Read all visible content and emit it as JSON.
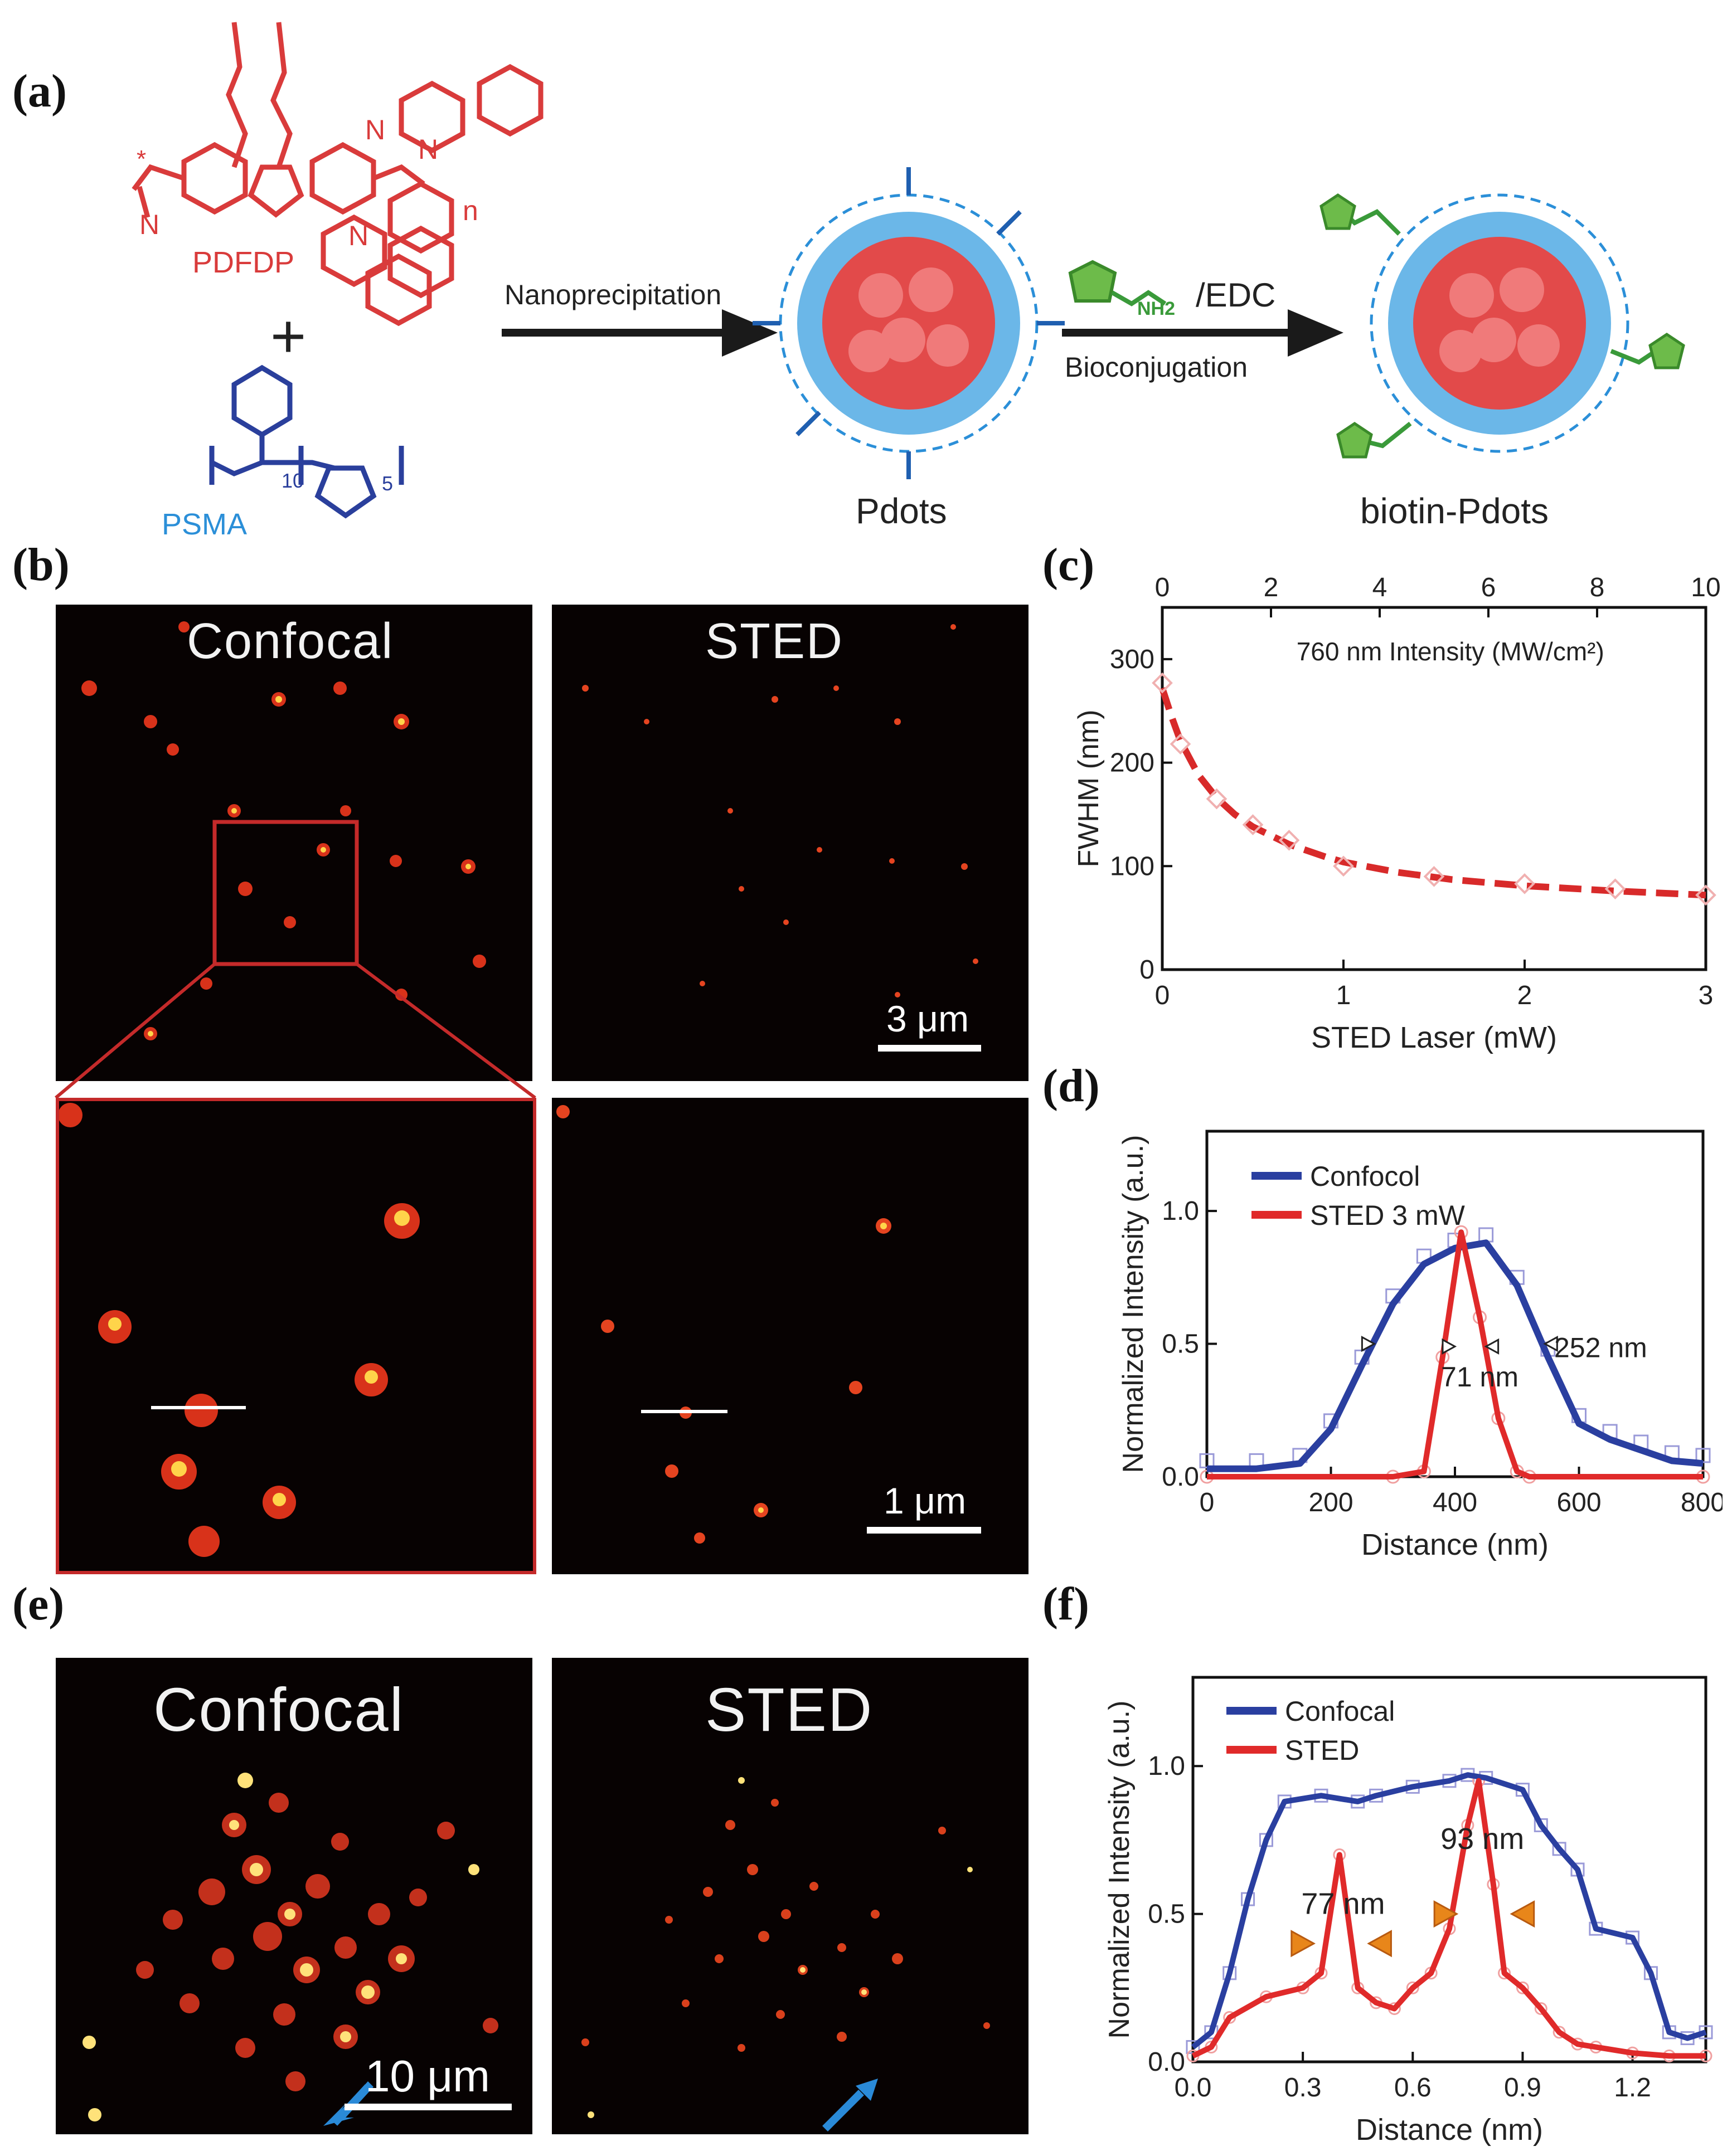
{
  "figure": {
    "panel_labels": {
      "a": "(a)",
      "b": "(b)",
      "c": "(c)",
      "d": "(d)",
      "e": "(e)",
      "f": "(f)"
    },
    "colors": {
      "pdfdp": "#d93b3b",
      "psma": "#2a3f9c",
      "psma_label": "#2b8fd8",
      "biotin": "#3a9a3a",
      "arrow": "#1a1a1a"
    }
  },
  "panel_a": {
    "pdfdp_label": "PDFDP",
    "psma_label": "PSMA",
    "plus": "+",
    "step1_label": "Nanoprecipitation",
    "reagent_label": "/EDC",
    "nh2_label": "NH2",
    "step2_label": "Bioconjugation",
    "product1": "Pdots",
    "product2": "biotin-Pdots",
    "chem_subscripts": {
      "n": "n",
      "s10": "10",
      "s5": "5"
    }
  },
  "panel_b": {
    "confocal_title": "Confocal",
    "sted_title": "STED",
    "scalebar_top": "3 μm",
    "scalebar_bottom": "1 μm"
  },
  "panel_e": {
    "confocal_title": "Confocal",
    "sted_title": "STED",
    "scalebar": "10 μm"
  },
  "chart_data": [
    {
      "id": "c",
      "type": "line",
      "xlabel": "STED Laser (mW)",
      "ylabel": "FWHM (nm)",
      "top_axis_label": "760 nm Intensity (MW/cm²)",
      "xlim": [
        0,
        3
      ],
      "ylim": [
        0,
        350
      ],
      "top_xlim": [
        0,
        10
      ],
      "xticks": [
        0,
        1,
        2,
        3
      ],
      "yticks": [
        0,
        100,
        200,
        300
      ],
      "top_ticks": [
        0,
        2,
        4,
        6,
        8,
        10
      ],
      "series": [
        {
          "name": "measured",
          "marker": "diamond",
          "x": [
            0,
            0.1,
            0.3,
            0.5,
            0.7,
            1.0,
            1.5,
            2.0,
            2.5,
            3.0
          ],
          "y": [
            277,
            218,
            165,
            140,
            125,
            100,
            90,
            83,
            78,
            72
          ]
        },
        {
          "name": "fit",
          "style": "dashed",
          "x": [
            0,
            0.05,
            0.1,
            0.2,
            0.3,
            0.4,
            0.5,
            0.7,
            0.9,
            1.0,
            1.3,
            1.6,
            2.0,
            2.5,
            3.0
          ],
          "y": [
            272,
            245,
            221,
            188,
            166,
            150,
            138,
            121,
            109,
            104,
            94,
            87,
            81,
            76,
            72
          ]
        }
      ]
    },
    {
      "id": "d",
      "type": "line",
      "xlabel": "Distance (nm)",
      "ylabel": "Normalized Intensity (a.u.)",
      "xlim": [
        0,
        800
      ],
      "ylim": [
        0,
        1.3
      ],
      "xticks": [
        0,
        200,
        400,
        600,
        800
      ],
      "yticks": [
        0.0,
        0.5,
        1.0
      ],
      "legend": [
        "Confocol",
        "STED 3 mW"
      ],
      "annotations": [
        "71 nm",
        "252 nm"
      ],
      "series": [
        {
          "name": "Confocol",
          "x": [
            0,
            80,
            150,
            200,
            250,
            300,
            350,
            400,
            450,
            500,
            550,
            600,
            650,
            700,
            750,
            800
          ],
          "y": [
            0.03,
            0.03,
            0.05,
            0.18,
            0.42,
            0.65,
            0.8,
            0.86,
            0.88,
            0.72,
            0.45,
            0.2,
            0.14,
            0.1,
            0.06,
            0.05
          ]
        },
        {
          "name": "STED 3 mW",
          "x": [
            0,
            300,
            350,
            380,
            410,
            440,
            470,
            500,
            520,
            800
          ],
          "y": [
            0,
            0,
            0.02,
            0.45,
            0.92,
            0.6,
            0.22,
            0.02,
            0,
            0
          ]
        }
      ]
    },
    {
      "id": "f",
      "type": "line",
      "xlabel": "Distance (nm)",
      "ylabel": "Normalized Intensity (a.u.)",
      "xlim": [
        0,
        1.4
      ],
      "ylim": [
        0,
        1.3
      ],
      "xticks": [
        0.0,
        0.3,
        0.6,
        0.9,
        1.2
      ],
      "yticks": [
        0.0,
        0.5,
        1.0
      ],
      "legend": [
        "Confocal",
        "STED"
      ],
      "annotations": [
        "77 nm",
        "93 nm"
      ],
      "series": [
        {
          "name": "Confocal",
          "x": [
            0,
            0.05,
            0.1,
            0.15,
            0.2,
            0.25,
            0.35,
            0.45,
            0.5,
            0.6,
            0.7,
            0.75,
            0.8,
            0.9,
            0.95,
            1.0,
            1.05,
            1.1,
            1.2,
            1.25,
            1.3,
            1.35,
            1.4
          ],
          "y": [
            0.05,
            0.1,
            0.3,
            0.55,
            0.75,
            0.88,
            0.9,
            0.88,
            0.9,
            0.93,
            0.95,
            0.97,
            0.96,
            0.92,
            0.8,
            0.72,
            0.65,
            0.45,
            0.42,
            0.3,
            0.1,
            0.08,
            0.1
          ]
        },
        {
          "name": "STED",
          "x": [
            0,
            0.05,
            0.1,
            0.2,
            0.3,
            0.35,
            0.4,
            0.45,
            0.5,
            0.55,
            0.6,
            0.65,
            0.7,
            0.75,
            0.78,
            0.82,
            0.85,
            0.9,
            0.95,
            1.0,
            1.05,
            1.1,
            1.2,
            1.3,
            1.4
          ],
          "y": [
            0.02,
            0.05,
            0.15,
            0.22,
            0.25,
            0.3,
            0.7,
            0.25,
            0.2,
            0.18,
            0.25,
            0.3,
            0.45,
            0.8,
            0.95,
            0.6,
            0.3,
            0.25,
            0.18,
            0.1,
            0.06,
            0.05,
            0.03,
            0.02,
            0.02
          ]
        }
      ]
    }
  ]
}
